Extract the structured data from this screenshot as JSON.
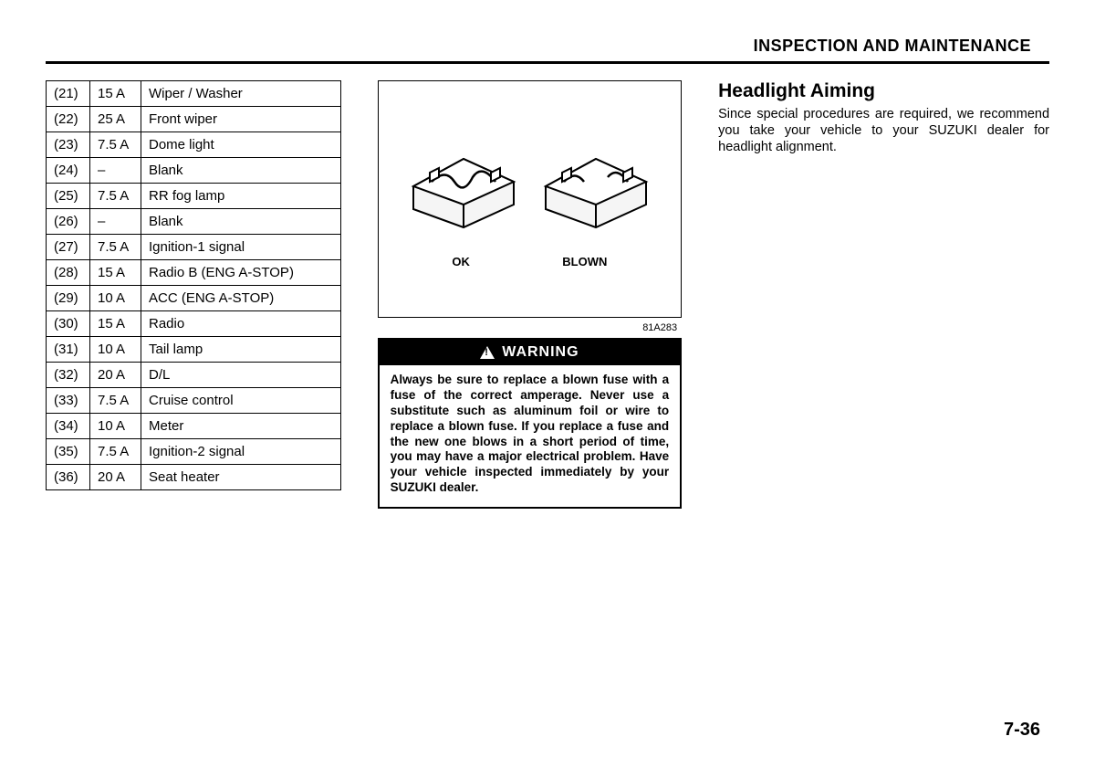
{
  "section_header": "INSPECTION AND MAINTENANCE",
  "fuse_table": {
    "rows": [
      {
        "num": "(21)",
        "amp": "15 A",
        "desc": "Wiper / Washer"
      },
      {
        "num": "(22)",
        "amp": "25 A",
        "desc": "Front wiper"
      },
      {
        "num": "(23)",
        "amp": "7.5 A",
        "desc": "Dome light"
      },
      {
        "num": "(24)",
        "amp": "–",
        "desc": "Blank"
      },
      {
        "num": "(25)",
        "amp": "7.5 A",
        "desc": "RR fog lamp"
      },
      {
        "num": "(26)",
        "amp": "–",
        "desc": "Blank"
      },
      {
        "num": "(27)",
        "amp": "7.5 A",
        "desc": "Ignition-1 signal"
      },
      {
        "num": "(28)",
        "amp": "15 A",
        "desc": "Radio B (ENG A-STOP)"
      },
      {
        "num": "(29)",
        "amp": "10 A",
        "desc": "ACC (ENG A-STOP)"
      },
      {
        "num": "(30)",
        "amp": "15 A",
        "desc": "Radio"
      },
      {
        "num": "(31)",
        "amp": "10 A",
        "desc": "Tail lamp"
      },
      {
        "num": "(32)",
        "amp": "20 A",
        "desc": "D/L"
      },
      {
        "num": "(33)",
        "amp": "7.5 A",
        "desc": "Cruise control"
      },
      {
        "num": "(34)",
        "amp": "10 A",
        "desc": "Meter"
      },
      {
        "num": "(35)",
        "amp": "7.5 A",
        "desc": "Ignition-2 signal"
      },
      {
        "num": "(36)",
        "amp": "20 A",
        "desc": "Seat heater"
      }
    ],
    "font_size": 15,
    "border_color": "#000000"
  },
  "fuse_diagram": {
    "label_ok": "OK",
    "label_blown": "BLOWN",
    "code": "81A283",
    "border_color": "#000000"
  },
  "warning": {
    "title": "WARNING",
    "body": "Always be sure to replace a blown fuse with a fuse of the correct amperage. Never use a substitute such as aluminum foil or wire to replace a blown fuse. If you replace a fuse and the new one blows in a short period of time, you may have a major electrical problem. Have your vehicle inspected immediately by your SUZUKI dealer.",
    "header_bg": "#000000",
    "header_color": "#ffffff",
    "font_size": 13.5
  },
  "right": {
    "heading": "Headlight Aiming",
    "body": "Since special procedures are required, we recommend you take your vehicle to your SUZUKI dealer for headlight alignment."
  },
  "page_number": "7-36",
  "colors": {
    "background": "#ffffff",
    "text": "#000000",
    "rule": "#000000"
  }
}
